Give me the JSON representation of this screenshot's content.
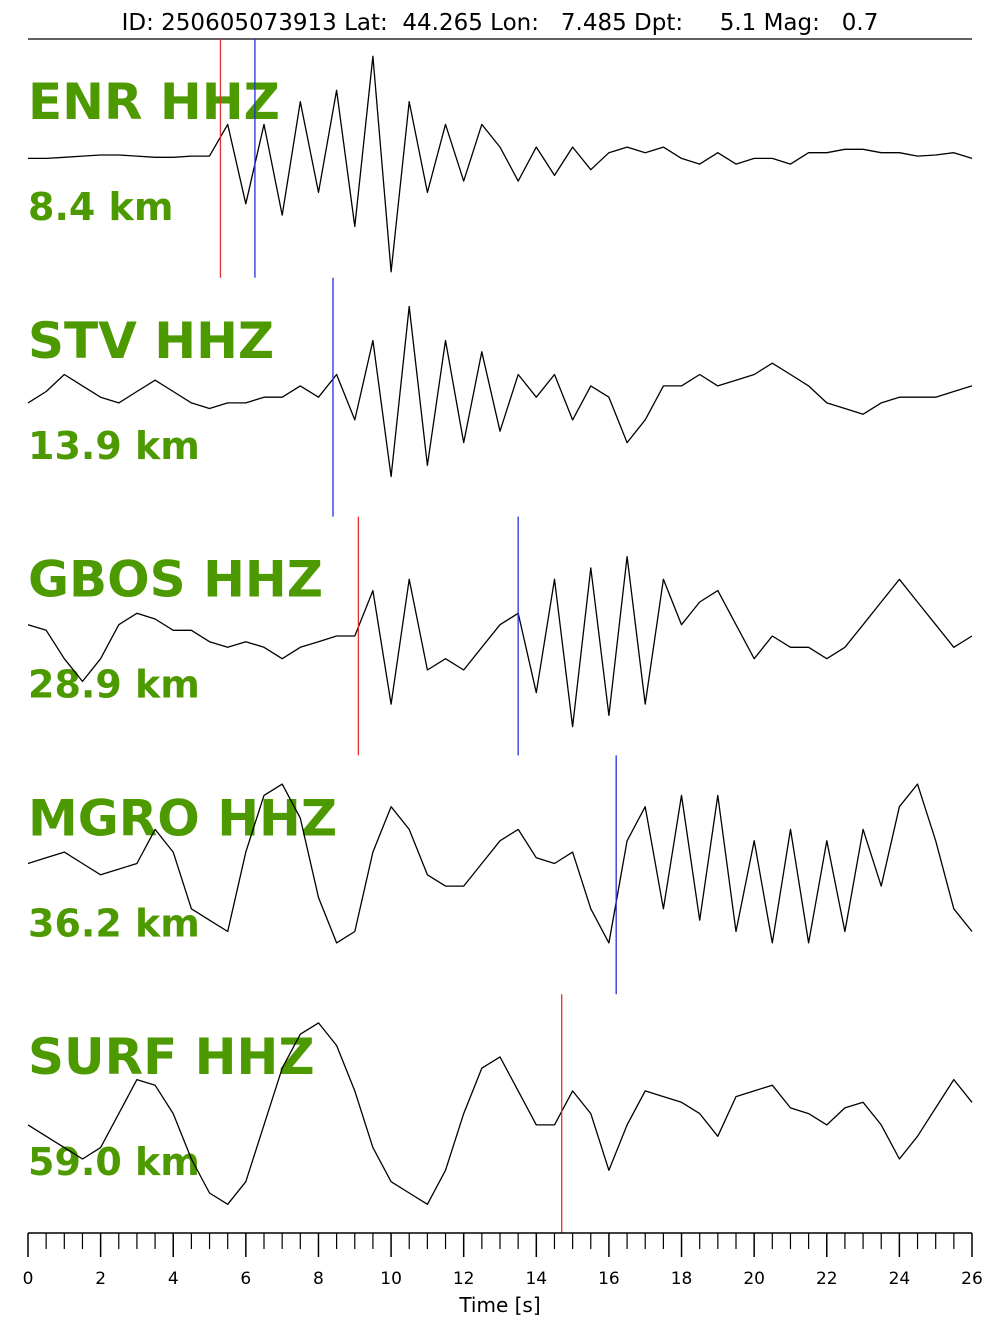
{
  "chart_data": {
    "type": "line",
    "title": "ID: 250605073913 Lat:  44.265 Lon:   7.485 Dpt:     5.1 Mag:   0.7",
    "xlabel": "Time [s]",
    "xlim": [
      0,
      26
    ],
    "xticks": [
      0,
      2,
      4,
      6,
      8,
      10,
      12,
      14,
      16,
      18,
      20,
      22,
      24,
      26
    ],
    "xminorticks": [
      0.5,
      1,
      1.5,
      2.5,
      3,
      3.5,
      4.5,
      5,
      5.5,
      6.5,
      7,
      7.5,
      8.5,
      9,
      9.5,
      10.5,
      11,
      11.5,
      12.5,
      13,
      13.5,
      14.5,
      15,
      15.5,
      16.5,
      17,
      17.5,
      18.5,
      19,
      19.5,
      20.5,
      21,
      21.5,
      22.5,
      23,
      23.5,
      24.5,
      25,
      25.5
    ],
    "ylim": [
      -1,
      1
    ],
    "label_color": "#4d9900",
    "x": [
      0,
      0.5,
      1,
      1.5,
      2,
      2.5,
      3,
      3.5,
      4,
      4.5,
      5,
      5.5,
      6,
      6.5,
      7,
      7.5,
      8,
      8.5,
      9,
      9.5,
      10,
      10.5,
      11,
      11.5,
      12,
      12.5,
      13,
      13.5,
      14,
      14.5,
      15,
      15.5,
      16,
      16.5,
      17,
      17.5,
      18,
      18.5,
      19,
      19.5,
      20,
      20.5,
      21,
      21.5,
      22,
      22.5,
      23,
      23.5,
      24,
      24.5,
      25,
      25.5,
      26
    ],
    "traces": [
      {
        "name": "ENR HHZ",
        "distance": "8.4 km",
        "color": "#000000",
        "picks": [
          {
            "color": "#e03030",
            "time": 5.3
          },
          {
            "color": "#2030e0",
            "time": 6.25
          }
        ],
        "values": [
          0,
          0,
          0.01,
          0.02,
          0.03,
          0.03,
          0.02,
          0.01,
          0.01,
          0.02,
          0.02,
          0.3,
          -0.4,
          0.3,
          -0.5,
          0.5,
          -0.3,
          0.6,
          -0.6,
          0.9,
          -1.0,
          0.5,
          -0.3,
          0.3,
          -0.2,
          0.3,
          0.1,
          -0.2,
          0.1,
          -0.15,
          0.1,
          -0.1,
          0.05,
          0.1,
          0.05,
          0.1,
          0,
          -0.05,
          0.05,
          -0.05,
          0,
          0,
          -0.05,
          0.05,
          0.05,
          0.08,
          0.08,
          0.05,
          0.05,
          0.02,
          0.03,
          0.05,
          0
        ]
      },
      {
        "name": "STV HHZ",
        "distance": "13.9 km",
        "color": "#000000",
        "picks": [
          {
            "color": "#2030e0",
            "time": 8.4
          }
        ],
        "values": [
          -0.05,
          0.05,
          0.2,
          0.1,
          0,
          -0.05,
          0.05,
          0.15,
          0.05,
          -0.05,
          -0.1,
          -0.05,
          -0.05,
          0,
          0,
          0.1,
          0,
          0.2,
          -0.2,
          0.5,
          -0.7,
          0.8,
          -0.6,
          0.5,
          -0.4,
          0.4,
          -0.3,
          0.2,
          0,
          0.2,
          -0.2,
          0.1,
          0,
          -0.4,
          -0.2,
          0.1,
          0.1,
          0.2,
          0.1,
          0.15,
          0.2,
          0.3,
          0.2,
          0.1,
          -0.05,
          -0.1,
          -0.15,
          -0.05,
          0,
          0,
          0,
          0.05,
          0.1
        ]
      },
      {
        "name": "GBOS HHZ",
        "distance": "28.9 km",
        "color": "#000000",
        "picks": [
          {
            "color": "#e03030",
            "time": 9.1
          },
          {
            "color": "#2030e0",
            "time": 13.5
          }
        ],
        "values": [
          0.1,
          0.05,
          -0.2,
          -0.4,
          -0.2,
          0.1,
          0.2,
          0.15,
          0.05,
          0.05,
          -0.05,
          -0.1,
          -0.05,
          -0.1,
          -0.2,
          -0.1,
          -0.05,
          0,
          0,
          0.4,
          -0.6,
          0.5,
          -0.3,
          -0.2,
          -0.3,
          -0.1,
          0.1,
          0.2,
          -0.5,
          0.5,
          -0.8,
          0.6,
          -0.7,
          0.7,
          -0.6,
          0.5,
          0.1,
          0.3,
          0.4,
          0.1,
          -0.2,
          0,
          -0.1,
          -0.1,
          -0.2,
          -0.1,
          0.1,
          0.3,
          0.5,
          0.3,
          0.1,
          -0.1,
          0
        ]
      },
      {
        "name": "MGRO HHZ",
        "distance": "36.2 km",
        "color": "#000000",
        "picks": [
          {
            "color": "#2030e0",
            "time": 16.2
          }
        ],
        "values": [
          0.1,
          0.15,
          0.2,
          0.1,
          0,
          0.05,
          0.1,
          0.4,
          0.2,
          -0.3,
          -0.4,
          -0.5,
          0.2,
          0.7,
          0.8,
          0.5,
          -0.2,
          -0.6,
          -0.5,
          0.2,
          0.6,
          0.4,
          0,
          -0.1,
          -0.1,
          0.1,
          0.3,
          0.4,
          0.15,
          0.1,
          0.2,
          -0.3,
          -0.6,
          0.3,
          0.6,
          -0.3,
          0.7,
          -0.4,
          0.7,
          -0.5,
          0.3,
          -0.6,
          0.4,
          -0.6,
          0.3,
          -0.5,
          0.4,
          -0.1,
          0.6,
          0.8,
          0.3,
          -0.3,
          -0.5
        ]
      },
      {
        "name": "SURF HHZ",
        "distance": "59.0 km",
        "color": "#000000",
        "picks": [
          {
            "color": "#e03030",
            "time": 14.7
          }
        ],
        "values": [
          -0.1,
          -0.2,
          -0.3,
          -0.4,
          -0.3,
          0,
          0.3,
          0.25,
          0,
          -0.4,
          -0.7,
          -0.8,
          -0.6,
          -0.1,
          0.4,
          0.7,
          0.8,
          0.6,
          0.2,
          -0.3,
          -0.6,
          -0.7,
          -0.8,
          -0.5,
          0,
          0.4,
          0.5,
          0.2,
          -0.1,
          -0.1,
          0.2,
          0,
          -0.5,
          -0.1,
          0.2,
          0.15,
          0.1,
          0,
          -0.2,
          0.15,
          0.2,
          0.25,
          0.05,
          0,
          -0.1,
          0.05,
          0.1,
          -0.1,
          -0.4,
          -0.2,
          0.05,
          0.3,
          0.1
        ]
      }
    ]
  }
}
